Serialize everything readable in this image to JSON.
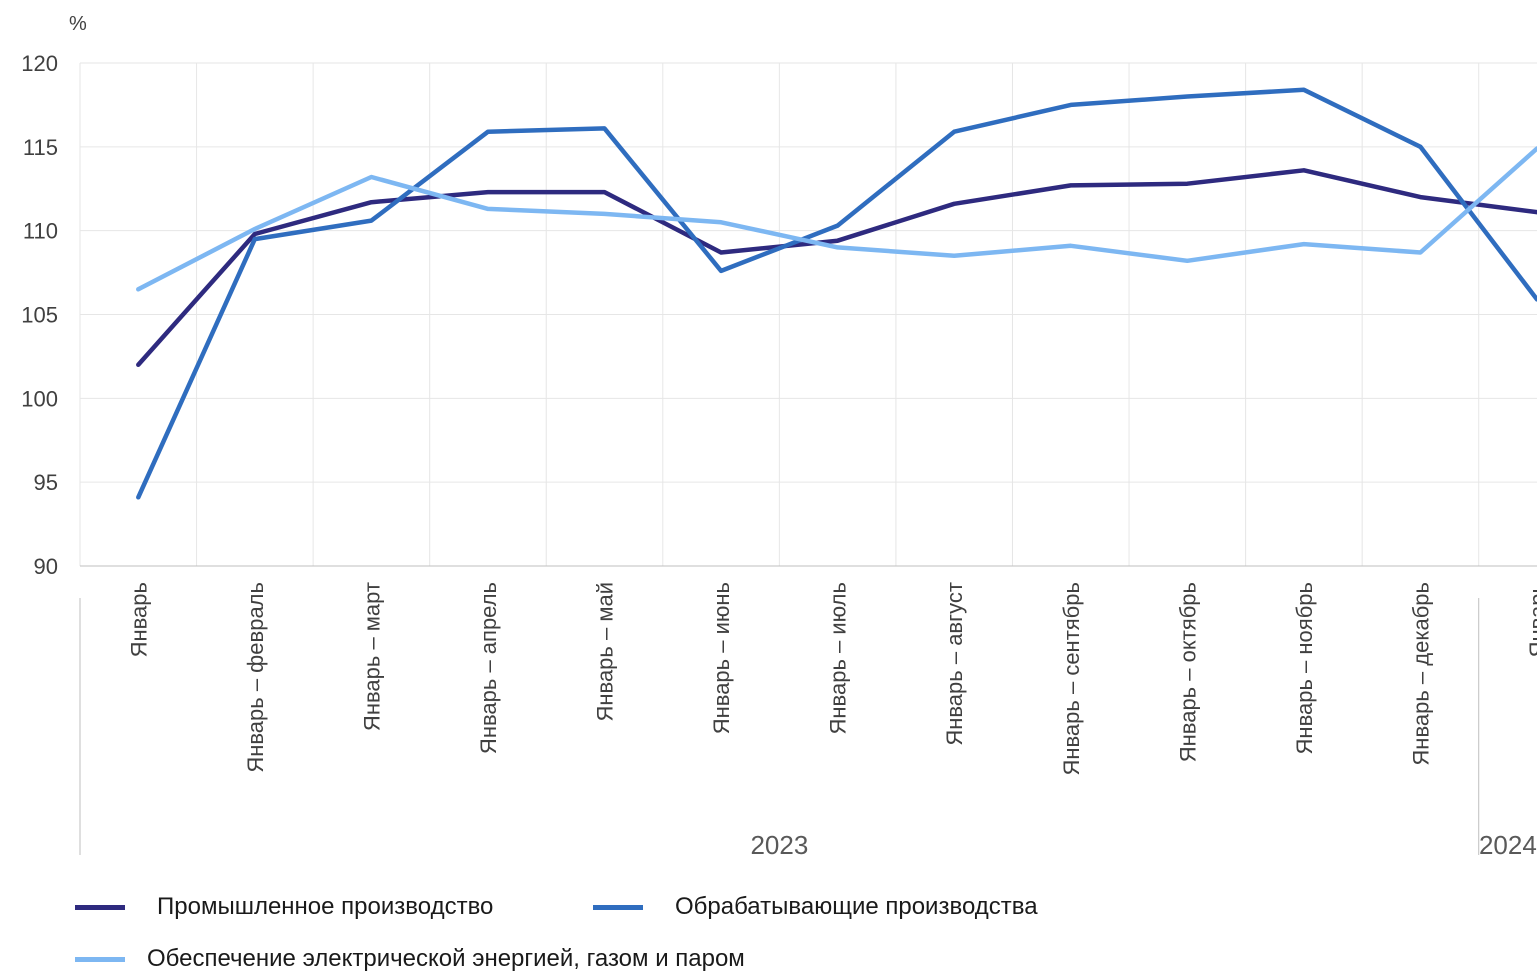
{
  "chart_data": {
    "type": "line",
    "ylabel": "%",
    "ylim": [
      90,
      120
    ],
    "yticks": [
      90,
      95,
      100,
      105,
      110,
      115,
      120
    ],
    "grid": true,
    "categories": [
      "Январь",
      "Январь – февраль",
      "Январь – март",
      "Январь – апрель",
      "Январь – май",
      "Январь – июнь",
      "Январь – июль",
      "Январь – август",
      "Январь – сентябрь",
      "Январь – октябрь",
      "Январь – ноябрь",
      "Январь – декабрь",
      "Январь"
    ],
    "groups": [
      {
        "label": "2023",
        "categories_count": 12
      },
      {
        "label": "2024",
        "categories_count": 1
      }
    ],
    "series": [
      {
        "name": "Промышленное производство",
        "color": "#2e2a7f",
        "values": [
          102.0,
          109.8,
          111.7,
          112.3,
          112.3,
          108.7,
          109.4,
          111.6,
          112.7,
          112.8,
          113.6,
          112.0,
          111.1
        ]
      },
      {
        "name": "Обрабатывающие производства",
        "color": "#2f6dbf",
        "values": [
          94.1,
          109.5,
          110.6,
          115.9,
          116.1,
          107.6,
          110.3,
          115.9,
          117.5,
          118.0,
          118.4,
          115.0,
          105.9
        ]
      },
      {
        "name": "Обеспечение электрической энергией, газом и паром",
        "color": "#7db7f2",
        "values": [
          106.5,
          110.1,
          113.2,
          111.3,
          111.0,
          110.5,
          109.0,
          108.5,
          109.1,
          108.2,
          109.2,
          108.7,
          114.9
        ]
      }
    ],
    "legend_position": "bottom"
  }
}
